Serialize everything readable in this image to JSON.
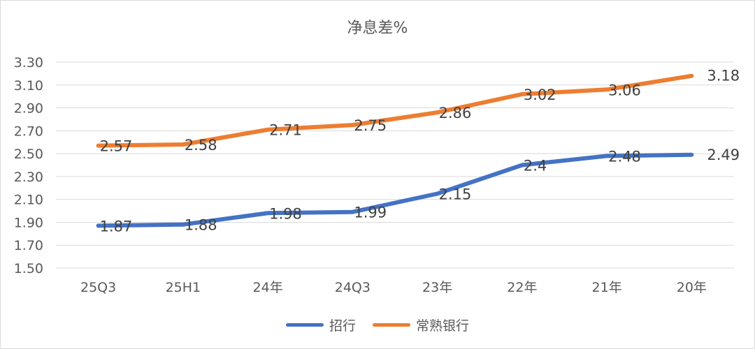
{
  "chart_data": {
    "type": "line",
    "title": "净息差%",
    "categories": [
      "25Q3",
      "25H1",
      "24年",
      "24Q3",
      "23年",
      "22年",
      "21年",
      "20年"
    ],
    "yticks": [
      "3.30",
      "3.10",
      "2.90",
      "2.70",
      "2.50",
      "2.30",
      "2.10",
      "1.90",
      "1.70",
      "1.50"
    ],
    "ylim": [
      1.5,
      3.3
    ],
    "grid": true,
    "legend_position": "bottom",
    "series": [
      {
        "name": "招行",
        "color": "#4472c4",
        "values": [
          1.87,
          1.88,
          1.98,
          1.99,
          2.15,
          2.4,
          2.48,
          2.49
        ],
        "labels": [
          "1.87",
          "1.88",
          "1.98",
          "1.99",
          "2.15",
          "2.4",
          "2.48",
          "2.49"
        ]
      },
      {
        "name": "常熟银行",
        "color": "#ed7d31",
        "values": [
          2.57,
          2.58,
          2.71,
          2.75,
          2.86,
          3.02,
          3.06,
          3.18
        ],
        "labels": [
          "2.57",
          "2.58",
          "2.71",
          "2.75",
          "2.86",
          "3.02",
          "3.06",
          "3.18"
        ]
      }
    ]
  }
}
